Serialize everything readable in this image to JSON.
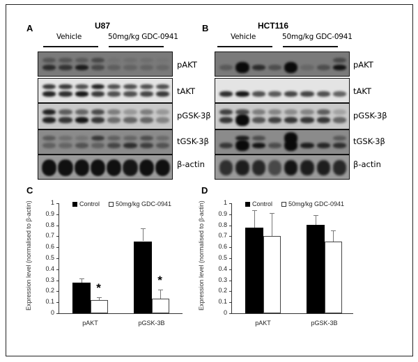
{
  "panels": {
    "A": {
      "letter": "A",
      "cell_line": "U87",
      "groups": [
        "Vehicle",
        "50mg/kg GDC-0941"
      ],
      "blots": [
        "pAKT",
        "tAKT",
        "pGSK-3β",
        "tGSK-3β",
        "β-actin"
      ]
    },
    "B": {
      "letter": "B",
      "cell_line": "HCT116",
      "groups": [
        "Vehicle",
        "50mg/kg GDC-0941"
      ],
      "blots": [
        "pAKT",
        "tAKT",
        "pGSK-3β",
        "tGSK-3β",
        "β-actin"
      ]
    },
    "C": {
      "letter": "C"
    },
    "D": {
      "letter": "D"
    }
  },
  "colors": {
    "control": "#000000",
    "treated": "#ffffff",
    "error_bar": "#777777"
  },
  "chart_data": [
    {
      "panel": "C",
      "type": "bar",
      "title": "",
      "xlabel": "",
      "ylabel": "Expression level (normalised to β-actin)",
      "ylim": [
        0,
        1
      ],
      "yticks": [
        "0",
        "0.1",
        "0.2",
        "0.3",
        "0.4",
        "0.5",
        "0.6",
        "0.7",
        "0.8",
        "0.9",
        "1"
      ],
      "categories": [
        "pAKT",
        "pGSK-3B"
      ],
      "legend": [
        "Control",
        "50mg/kg GDC-0941"
      ],
      "legend_position": "top",
      "grid": false,
      "series": [
        {
          "name": "Control",
          "values": [
            0.28,
            0.655
          ],
          "errors": [
            0.035,
            0.115
          ]
        },
        {
          "name": "50mg/kg GDC-0941",
          "values": [
            0.12,
            0.135
          ],
          "errors": [
            0.025,
            0.08
          ]
        }
      ],
      "annotations": [
        {
          "category": "pAKT",
          "series": "50mg/kg GDC-0941",
          "text": "*"
        },
        {
          "category": "pGSK-3B",
          "series": "50mg/kg GDC-0941",
          "text": "*"
        }
      ]
    },
    {
      "panel": "D",
      "type": "bar",
      "title": "",
      "xlabel": "",
      "ylabel": "Expression level (normalised to β-actin)",
      "ylim": [
        0,
        1
      ],
      "yticks": [
        "0",
        "0.1",
        "0.2",
        "0.3",
        "0.4",
        "0.5",
        "0.6",
        "0.7",
        "0.8",
        "0.9",
        "1"
      ],
      "categories": [
        "pAKT",
        "pGSK-3B"
      ],
      "legend": [
        "Control",
        "50mg/kg GDC-0941"
      ],
      "legend_position": "top",
      "grid": false,
      "series": [
        {
          "name": "Control",
          "values": [
            0.78,
            0.805
          ],
          "errors": [
            0.155,
            0.09
          ]
        },
        {
          "name": "50mg/kg GDC-0941",
          "values": [
            0.7,
            0.65
          ],
          "errors": [
            0.21,
            0.105
          ]
        }
      ],
      "annotations": []
    }
  ]
}
